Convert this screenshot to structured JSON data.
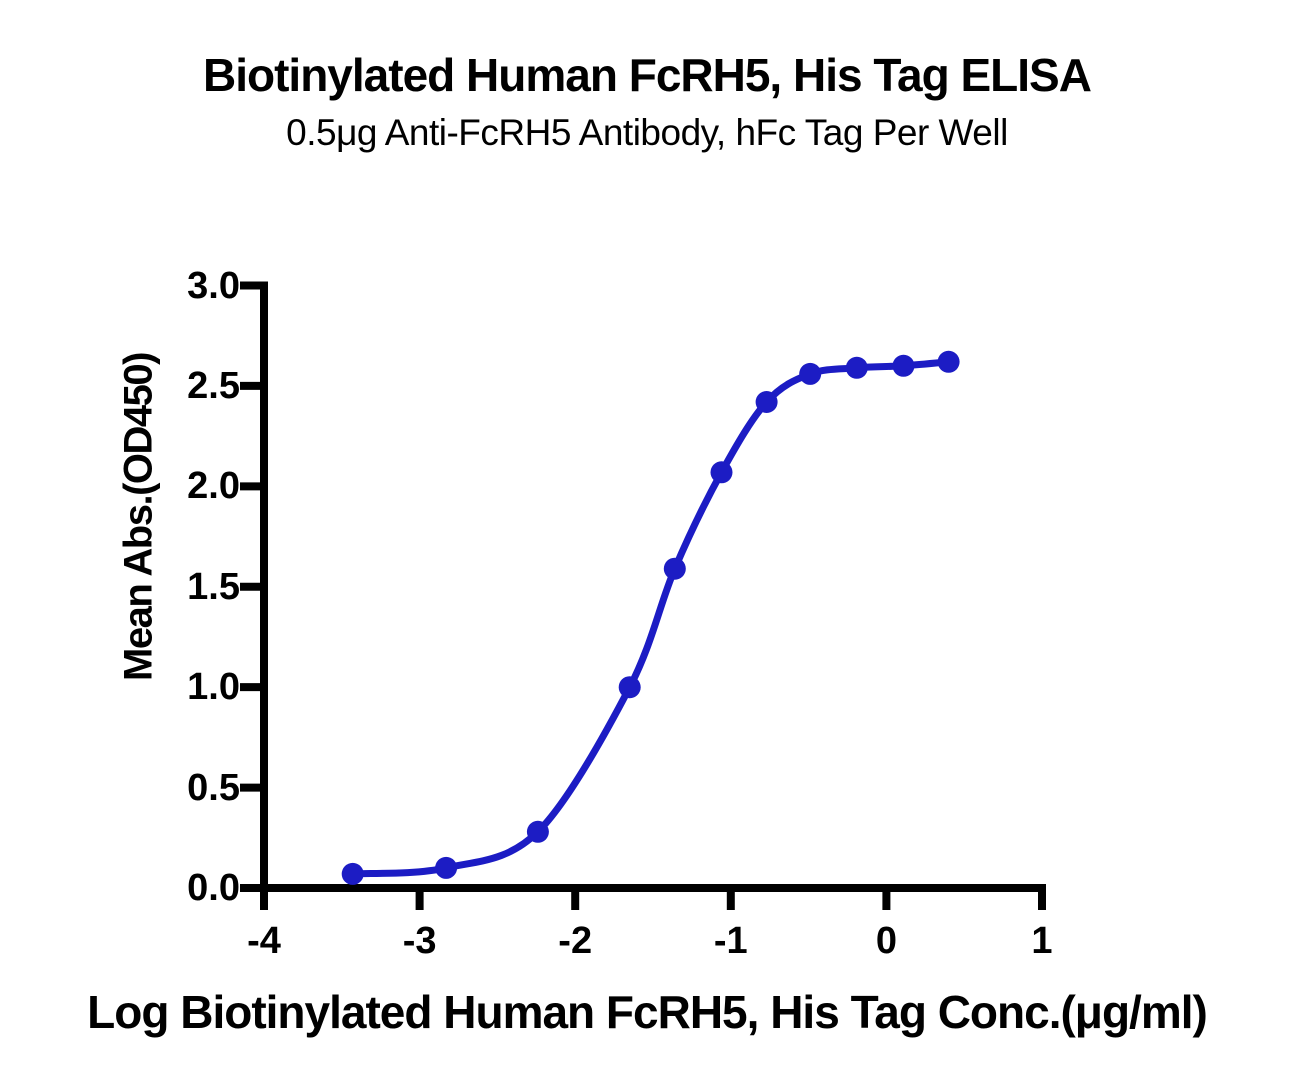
{
  "page": {
    "background": "#FFFFFF"
  },
  "chart_data": {
    "type": "scatter",
    "smooth_line": true,
    "title": "Biotinylated Human FcRH5, His Tag ELISA",
    "subtitle": "0.5μg Anti-FcRH5 Antibody, hFc Tag Per Well",
    "xlabel": "Log Biotinylated Human FcRH5, His Tag Conc.(μg/ml)",
    "ylabel": "Mean Abs.(OD450)",
    "xlim": [
      -4,
      1
    ],
    "ylim": [
      0,
      3
    ],
    "xticks": [
      -4,
      -3,
      -2,
      -1,
      0,
      1
    ],
    "xtick_labels": [
      "-4",
      "-3",
      "-2",
      "-1",
      "0",
      "1"
    ],
    "yticks": [
      0,
      0.5,
      1,
      1.5,
      2,
      2.5,
      3
    ],
    "ytick_labels": [
      "0.0",
      "0.5",
      "1.0",
      "1.5",
      "2.0",
      "2.5",
      "3.0"
    ],
    "grid": false,
    "legend": null,
    "x": [
      -3.43,
      -2.83,
      -2.24,
      -1.65,
      -1.36,
      -1.06,
      -0.77,
      -0.49,
      -0.19,
      0.11,
      0.4
    ],
    "y": [
      0.07,
      0.1,
      0.28,
      1.0,
      1.59,
      2.07,
      2.42,
      2.56,
      2.59,
      2.6,
      2.62
    ],
    "colors": {
      "curve": "#1C1CC4",
      "axis": "#000000",
      "text": "#000000"
    }
  }
}
